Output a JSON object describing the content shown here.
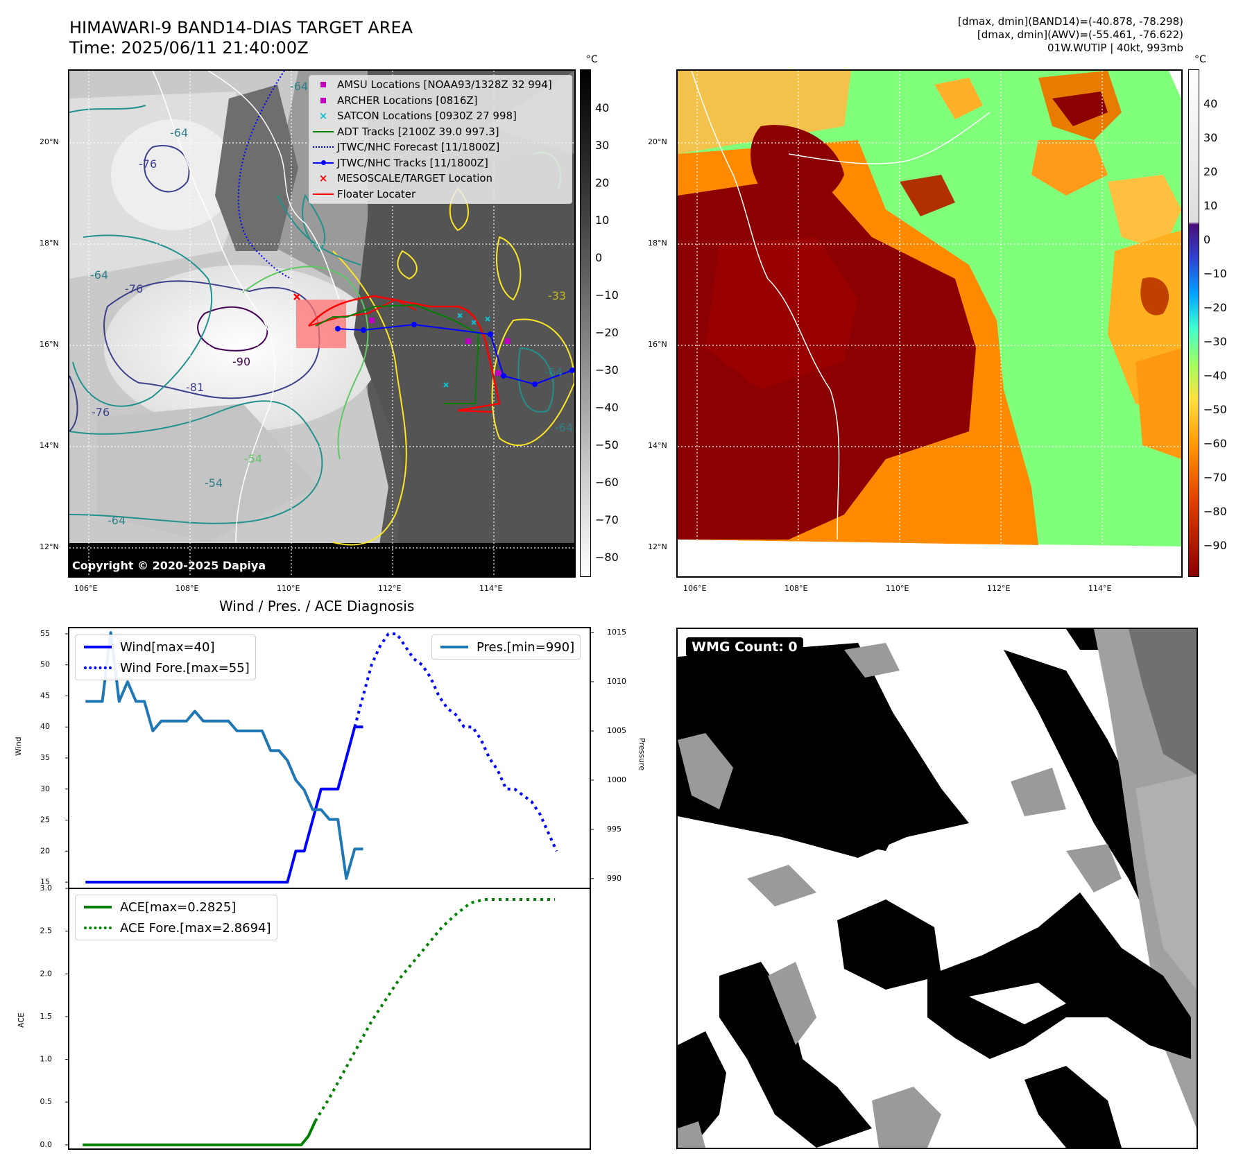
{
  "header": {
    "title_line1": "HIMAWARI-9 BAND14-DIAS TARGET AREA",
    "title_line2": "Time: 2025/06/11 21:40:00Z",
    "info_line1": "[dmax, dmin](BAND14)=(-40.878, -78.298)",
    "info_line2": "[dmax, dmin](AWV)=(-55.461, -76.622)",
    "info_line3": "01W.WUTIP | 40kt, 993mb"
  },
  "map": {
    "lon_ticks": [
      "106°E",
      "108°E",
      "110°E",
      "112°E",
      "114°E"
    ],
    "lat_ticks": [
      "20°N",
      "18°N",
      "16°N",
      "14°N",
      "12°N"
    ],
    "copyright": "Copyright © 2020-2025 Dapiya",
    "contour_labels": [
      "-64",
      "-64",
      "-76",
      "-64",
      "-76",
      "-90",
      "-81",
      "-76",
      "-54",
      "-54",
      "-64",
      "-64",
      "-33",
      "-64"
    ],
    "legend": [
      {
        "label": "AMSU Locations [NOAA93/1328Z 32 994]",
        "symbol": "square",
        "color": "#bf00bf"
      },
      {
        "label": "ARCHER Locations [0816Z]",
        "symbol": "square",
        "color": "#bf00bf"
      },
      {
        "label": "SATCON Locations [0930Z 27 998]",
        "symbol": "x",
        "color": "#17becf"
      },
      {
        "label": "ADT Tracks [2100Z 39.0 997.3]",
        "symbol": "line",
        "color": "#008000"
      },
      {
        "label": "JTWC/NHC Forecast [11/1800Z]",
        "symbol": "dotted",
        "color": "#0000ff"
      },
      {
        "label": "JTWC/NHC Tracks [11/1800Z]",
        "symbol": "line-dot",
        "color": "#0000ff"
      },
      {
        "label": "MESOSCALE/TARGET Location",
        "symbol": "x",
        "color": "#ff0000"
      },
      {
        "label": "Floater Locater",
        "symbol": "line",
        "color": "#ff0000"
      }
    ]
  },
  "colorbar_gray": {
    "unit": "°C",
    "ticks": [
      "40",
      "30",
      "20",
      "10",
      "0",
      "−10",
      "−20",
      "−30",
      "−40",
      "−50",
      "−60",
      "−70",
      "−80"
    ]
  },
  "colorbar_color": {
    "unit": "°C",
    "ticks": [
      "40",
      "30",
      "20",
      "10",
      "0",
      "−10",
      "−20",
      "−30",
      "−40",
      "−50",
      "−60",
      "−70",
      "−80",
      "−90"
    ]
  },
  "wind_panel": {
    "title": "Wind / Pres. / ACE Diagnosis",
    "ylabel": "Wind",
    "ylabel_right": "Pressure",
    "yticks": [
      "55",
      "50",
      "45",
      "40",
      "35",
      "30",
      "25",
      "20",
      "15"
    ],
    "yticks_right": [
      "1015",
      "1010",
      "1005",
      "1000",
      "995",
      "990"
    ],
    "legend_wind": "Wind[max=40]",
    "legend_wind_fore": "Wind Fore.[max=55]",
    "legend_pres": "Pres.[min=990]"
  },
  "ace_panel": {
    "ylabel": "ACE",
    "yticks": [
      "3.0",
      "2.5",
      "2.0",
      "1.5",
      "1.0",
      "0.5",
      "0.0"
    ],
    "legend_ace": "ACE[max=0.2825]",
    "legend_ace_fore": "ACE Fore.[max=2.8694]"
  },
  "wmg_panel": {
    "label": "WMG Count: 0"
  },
  "chart_data": [
    {
      "type": "line",
      "title": "Wind / Pres. / ACE Diagnosis",
      "ylabel": "Wind",
      "ylim": [
        14,
        56
      ],
      "y2label": "Pressure",
      "y2lim": [
        989,
        1015.5
      ],
      "series": [
        {
          "name": "Wind[max=40]",
          "axis": "left",
          "x": [
            0,
            1,
            2,
            3,
            4,
            5,
            6,
            7,
            8,
            9,
            10,
            11,
            12,
            13,
            14,
            15,
            16,
            17,
            18,
            19,
            20,
            21,
            22,
            23,
            24,
            25,
            26,
            27,
            28,
            29,
            30,
            31,
            32,
            33
          ],
          "values": [
            15,
            15,
            15,
            15,
            15,
            15,
            15,
            15,
            15,
            15,
            15,
            15,
            15,
            15,
            15,
            15,
            15,
            15,
            15,
            15,
            15,
            15,
            15,
            15,
            15,
            20,
            20,
            25,
            30,
            30,
            30,
            35,
            40,
            40
          ]
        },
        {
          "name": "Wind Fore.[max=55]",
          "axis": "left",
          "x": [
            32,
            33,
            34,
            35,
            36,
            37,
            38,
            39,
            40,
            41,
            42,
            43,
            44,
            45,
            46,
            47,
            48,
            49,
            50,
            51,
            52,
            53,
            54,
            55,
            56
          ],
          "values": [
            40,
            45,
            50,
            53,
            55,
            55,
            53,
            51,
            50,
            48,
            45,
            43,
            42,
            40,
            40,
            38,
            35,
            33,
            30,
            30,
            29,
            28,
            26,
            23,
            20
          ]
        },
        {
          "name": "Pres.[min=990]",
          "axis": "right",
          "x": [
            0,
            1,
            2,
            3,
            4,
            5,
            6,
            7,
            8,
            9,
            10,
            11,
            12,
            13,
            14,
            15,
            16,
            17,
            18,
            19,
            20,
            21,
            22,
            23,
            24,
            25,
            26,
            27,
            28,
            29,
            30,
            31,
            32,
            33
          ],
          "values": [
            1008,
            1008,
            1008,
            1015,
            1008,
            1010,
            1008,
            1008,
            1005,
            1006,
            1006,
            1006,
            1006,
            1007,
            1006,
            1006,
            1006,
            1006,
            1005,
            1005,
            1005,
            1005,
            1003,
            1003,
            1002,
            1000,
            999,
            997,
            997,
            996,
            996,
            990,
            993,
            993
          ]
        }
      ]
    },
    {
      "type": "line",
      "ylabel": "ACE",
      "ylim": [
        -0.05,
        3.0
      ],
      "series": [
        {
          "name": "ACE[max=0.2825]",
          "x": [
            0,
            1,
            2,
            3,
            4,
            5,
            6,
            7,
            8,
            9,
            10,
            11,
            12,
            13,
            14,
            15,
            16,
            17,
            18,
            19,
            20,
            21,
            22,
            23,
            24,
            25,
            26,
            27,
            28,
            29,
            30,
            31,
            32,
            33
          ],
          "values": [
            0,
            0,
            0,
            0,
            0,
            0,
            0,
            0,
            0,
            0,
            0,
            0,
            0,
            0,
            0,
            0,
            0,
            0,
            0,
            0,
            0,
            0,
            0,
            0,
            0,
            0,
            0,
            0,
            0,
            0,
            0,
            0,
            0.1,
            0.28
          ]
        },
        {
          "name": "ACE Fore.[max=2.8694]",
          "x": [
            33,
            35,
            37,
            39,
            41,
            43,
            45,
            47,
            49,
            51,
            53,
            55,
            57,
            59,
            61,
            63,
            65,
            67
          ],
          "values": [
            0.28,
            0.55,
            0.85,
            1.15,
            1.45,
            1.7,
            1.95,
            2.15,
            2.35,
            2.55,
            2.7,
            2.83,
            2.87,
            2.87,
            2.87,
            2.87,
            2.87,
            2.87
          ]
        }
      ]
    }
  ]
}
